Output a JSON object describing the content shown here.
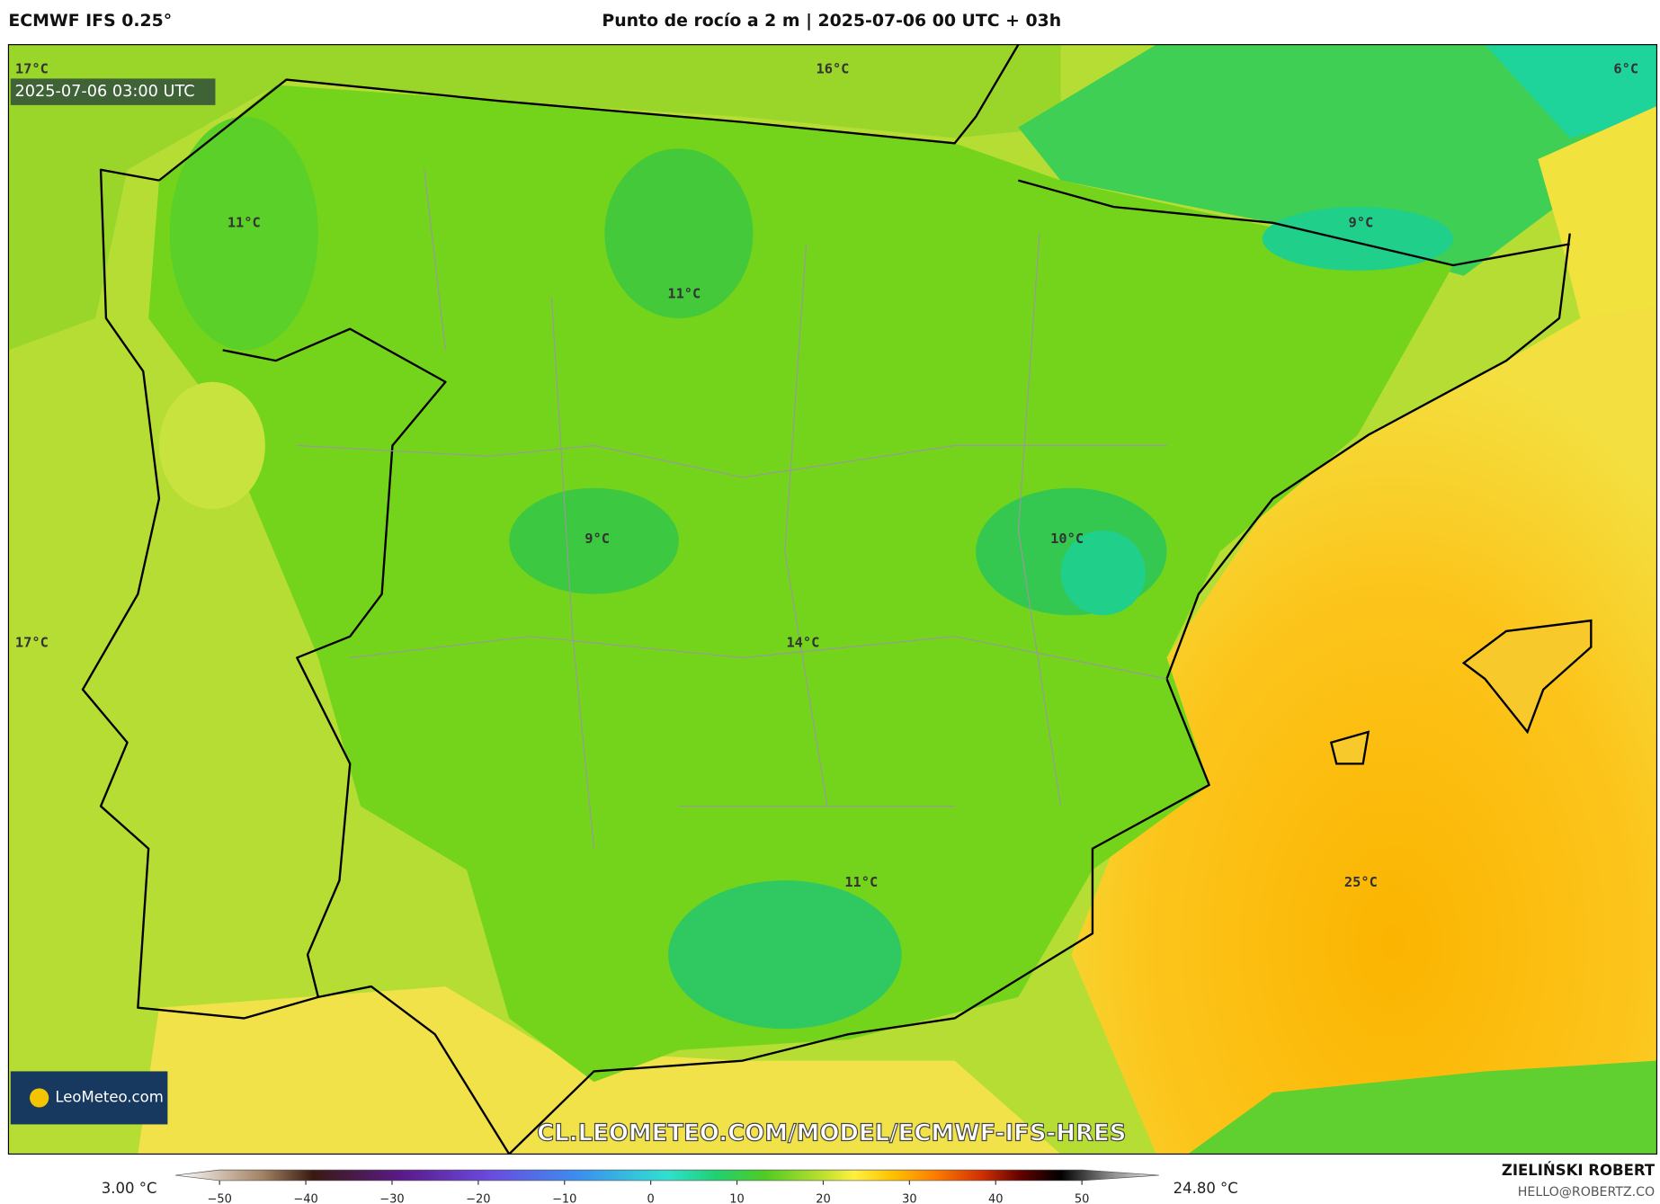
{
  "header": {
    "model": "ECMWF IFS 0.25°",
    "title": "Punto de rocío a 2 m | 2025-07-06 00 UTC + 03h"
  },
  "map": {
    "valid_time": "2025-07-06 03:00 UTC",
    "labels": [
      "17°C",
      "16°C",
      "6°C",
      "11°C",
      "9°C",
      "11°C",
      "9°C",
      "10°C",
      "17°C",
      "14°C",
      "11°C",
      "25°C"
    ],
    "watermark": "CL.LEOMETEO.COM/MODEL/ECMWF-IFS-HRES",
    "logo": "LeoMeteo.com"
  },
  "colorbar": {
    "min_label": "3.00 °C",
    "max_label": "24.80 °C",
    "lim": [
      -55,
      55
    ],
    "ticks": [
      {
        "value": -50,
        "label": "−50"
      },
      {
        "value": -40,
        "label": "−40"
      },
      {
        "value": -30,
        "label": "−30"
      },
      {
        "value": -20,
        "label": "−20"
      },
      {
        "value": -10,
        "label": "−10"
      },
      0,
      10,
      20,
      30,
      40,
      50
    ]
  },
  "credit": {
    "author": "ZIELIŃSKI ROBERT",
    "contact": "HELLO@ROBERTZ.CO"
  }
}
